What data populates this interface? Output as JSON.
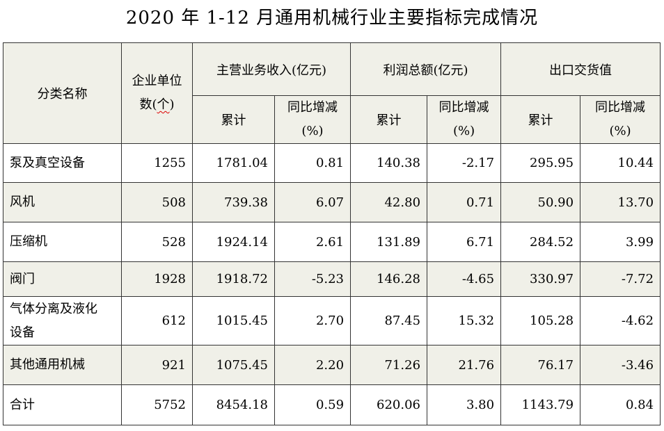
{
  "title": "2020 年 1-12 月通用机械行业主要指标完成情况",
  "header": {
    "category_name": "分类名称",
    "enterprise_count_line1": "企业单位",
    "enterprise_count_line2_pre": "数(",
    "enterprise_count_line2_unit": "个",
    "enterprise_count_line2_post": ")",
    "revenue_group": "主营业务收入(亿元)",
    "profit_group": "利润总额(亿元)",
    "export_group": "出口交货值",
    "cumulative": "累计",
    "yoy_line1": "同比增减",
    "yoy_line2": "(%)"
  },
  "rows": [
    {
      "name": "泵及真空设备",
      "count": "1255",
      "revenue": "1781.04",
      "revenue_yoy": "0.81",
      "profit": "140.38",
      "profit_yoy": "-2.17",
      "export": "295.95",
      "export_yoy": "10.44"
    },
    {
      "name": "风机",
      "count": "508",
      "revenue": "739.38",
      "revenue_yoy": "6.07",
      "profit": "42.80",
      "profit_yoy": "0.71",
      "export": "50.90",
      "export_yoy": "13.70"
    },
    {
      "name": "压缩机",
      "count": "528",
      "revenue": "1924.14",
      "revenue_yoy": "2.61",
      "profit": "131.89",
      "profit_yoy": "6.71",
      "export": "284.52",
      "export_yoy": "3.99"
    },
    {
      "name": "阀门",
      "count": "1928",
      "revenue": "1918.72",
      "revenue_yoy": "-5.23",
      "profit": "146.28",
      "profit_yoy": "-4.65",
      "export": "330.97",
      "export_yoy": "-7.72"
    },
    {
      "name_line1": "气体分离及液化",
      "name_line2": "设备",
      "count": "612",
      "revenue": "1015.45",
      "revenue_yoy": "2.70",
      "profit": "87.45",
      "profit_yoy": "15.32",
      "export": "105.28",
      "export_yoy": "-4.62"
    },
    {
      "name": "其他通用机械",
      "count": "921",
      "revenue": "1075.45",
      "revenue_yoy": "2.20",
      "profit": "71.26",
      "profit_yoy": "21.76",
      "export": "76.17",
      "export_yoy": "-3.46"
    },
    {
      "name": "合计",
      "count": "5752",
      "revenue": "8454.18",
      "revenue_yoy": "0.59",
      "profit": "620.06",
      "profit_yoy": "3.80",
      "export": "1143.79",
      "export_yoy": "0.84"
    }
  ],
  "colors": {
    "header_bg": "#f0f0e8",
    "shaded_row_bg": "#f0f0e8",
    "border": "#333333",
    "spellcheck_underline": "#dd0000"
  }
}
